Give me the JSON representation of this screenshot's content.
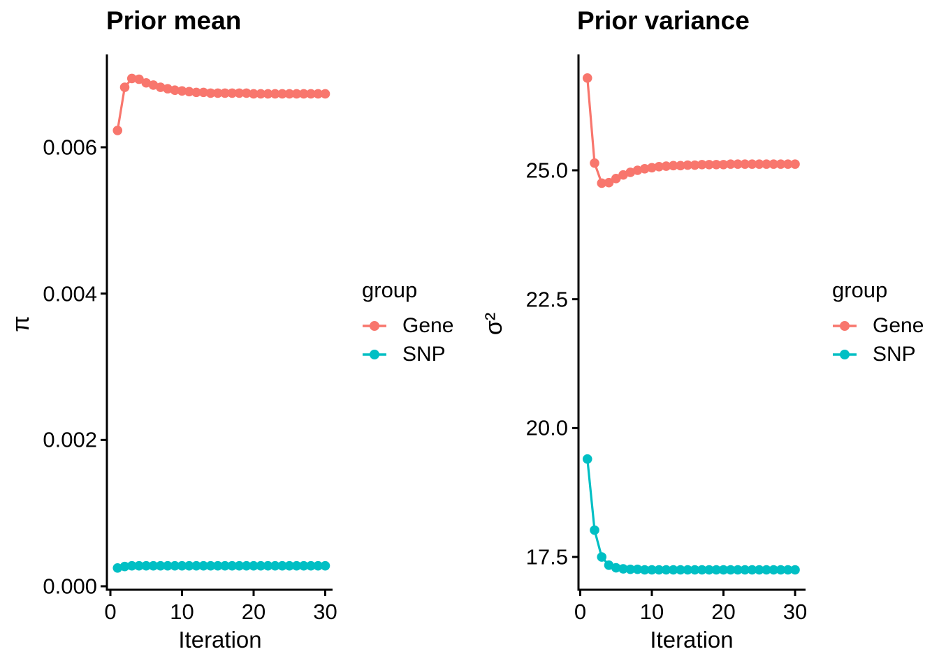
{
  "figure": {
    "background": "#FFFFFF",
    "text_color": "#000000",
    "axis_color": "#000000"
  },
  "chart_data": [
    {
      "type": "line",
      "title": "Prior mean",
      "xlabel": "Iteration",
      "ylabel": "π",
      "legend": {
        "title": "group",
        "position": "right"
      },
      "x_ticks": [
        0,
        10,
        20,
        30
      ],
      "y_ticks": [
        {
          "value": 0.0,
          "label": "0.000"
        },
        {
          "value": 0.002,
          "label": "0.002"
        },
        {
          "value": 0.004,
          "label": "0.004"
        },
        {
          "value": 0.006,
          "label": "0.006"
        }
      ],
      "xlim": [
        -0.5,
        31.5
      ],
      "ylim": [
        -5e-05,
        0.0072
      ],
      "grid": false,
      "x": [
        1,
        2,
        3,
        4,
        5,
        6,
        7,
        8,
        9,
        10,
        11,
        12,
        13,
        14,
        15,
        16,
        17,
        18,
        19,
        20,
        21,
        22,
        23,
        24,
        25,
        26,
        27,
        28,
        29,
        30
      ],
      "series": [
        {
          "name": "Gene",
          "color": "#F8766D",
          "values": [
            0.00623,
            0.00682,
            0.00694,
            0.00693,
            0.00688,
            0.00685,
            0.00682,
            0.0068,
            0.00678,
            0.00677,
            0.00676,
            0.00675,
            0.00675,
            0.00674,
            0.00674,
            0.00674,
            0.00674,
            0.00674,
            0.00674,
            0.00673,
            0.00673,
            0.00673,
            0.00673,
            0.00673,
            0.00673,
            0.00673,
            0.00673,
            0.00673,
            0.00673,
            0.00673
          ]
        },
        {
          "name": "SNP",
          "color": "#00BFC4",
          "values": [
            0.00025,
            0.00027,
            0.00028,
            0.00028,
            0.00028,
            0.00028,
            0.00028,
            0.00028,
            0.00028,
            0.00028,
            0.00028,
            0.00028,
            0.00028,
            0.00028,
            0.00028,
            0.00028,
            0.00028,
            0.00028,
            0.00028,
            0.00028,
            0.00028,
            0.00028,
            0.00028,
            0.00028,
            0.00028,
            0.00028,
            0.00028,
            0.00028,
            0.00028,
            0.00028
          ]
        }
      ]
    },
    {
      "type": "line",
      "title": "Prior variance",
      "xlabel": "Iteration",
      "ylabel": "σ²",
      "legend": {
        "title": "group",
        "position": "right"
      },
      "x_ticks": [
        0,
        10,
        20,
        30
      ],
      "y_ticks": [
        {
          "value": 17.5,
          "label": "17.5"
        },
        {
          "value": 20.0,
          "label": "20.0"
        },
        {
          "value": 22.5,
          "label": "22.5"
        },
        {
          "value": 25.0,
          "label": "25.0"
        }
      ],
      "xlim": [
        -0.5,
        31.5
      ],
      "ylim": [
        16.86,
        27.15
      ],
      "grid": false,
      "x": [
        1,
        2,
        3,
        4,
        5,
        6,
        7,
        8,
        9,
        10,
        11,
        12,
        13,
        14,
        15,
        16,
        17,
        18,
        19,
        20,
        21,
        22,
        23,
        24,
        25,
        26,
        27,
        28,
        29,
        30
      ],
      "series": [
        {
          "name": "Gene",
          "color": "#F8766D",
          "values": [
            26.79,
            25.14,
            24.75,
            24.76,
            24.84,
            24.91,
            24.96,
            25.0,
            25.03,
            25.05,
            25.07,
            25.08,
            25.09,
            25.09,
            25.1,
            25.1,
            25.11,
            25.11,
            25.11,
            25.11,
            25.12,
            25.12,
            25.12,
            25.12,
            25.12,
            25.12,
            25.12,
            25.12,
            25.12,
            25.12
          ]
        },
        {
          "name": "SNP",
          "color": "#00BFC4",
          "values": [
            19.4,
            18.02,
            17.5,
            17.34,
            17.29,
            17.27,
            17.26,
            17.26,
            17.25,
            17.25,
            17.25,
            17.25,
            17.25,
            17.25,
            17.25,
            17.25,
            17.25,
            17.25,
            17.25,
            17.25,
            17.25,
            17.25,
            17.25,
            17.25,
            17.25,
            17.25,
            17.25,
            17.25,
            17.25,
            17.25
          ]
        }
      ]
    }
  ]
}
